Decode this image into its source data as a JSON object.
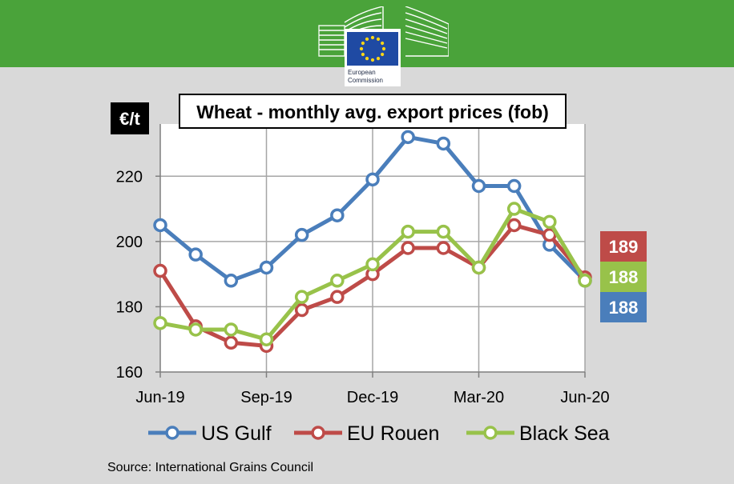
{
  "logo": {
    "line1": "European",
    "line2": "Commission"
  },
  "source": "Source: International Grains Council",
  "chart_data": {
    "type": "line",
    "title": "Wheat - monthly avg. export prices (fob)",
    "ylabel": "€/t",
    "xlabel": "",
    "ylim": [
      160,
      236
    ],
    "yticks": [
      160,
      180,
      200,
      220
    ],
    "x_tick_labels": [
      "Jun-19",
      "Sep-19",
      "Dec-19",
      "Mar-20",
      "Jun-20"
    ],
    "x_tick_positions": [
      0,
      3,
      6,
      9,
      12
    ],
    "categories": [
      "Jun-19",
      "Jul-19",
      "Aug-19",
      "Sep-19",
      "Oct-19",
      "Nov-19",
      "Dec-19",
      "Jan-20",
      "Feb-20",
      "Mar-20",
      "Apr-20",
      "May-20",
      "Jun-20"
    ],
    "grid": true,
    "legend_position": "bottom",
    "series": [
      {
        "name": "US Gulf",
        "color": "#4a7ebb",
        "values": [
          205,
          196,
          188,
          192,
          202,
          208,
          219,
          232,
          230,
          217,
          217,
          199,
          188
        ]
      },
      {
        "name": "EU Rouen",
        "color": "#be4b48",
        "values": [
          191,
          174,
          169,
          168,
          179,
          183,
          190,
          198,
          198,
          192,
          205,
          202,
          189
        ]
      },
      {
        "name": "Black Sea",
        "color": "#98c24a",
        "values": [
          175,
          173,
          173,
          170,
          183,
          188,
          193,
          203,
          203,
          192,
          210,
          206,
          188
        ]
      }
    ],
    "end_labels": [
      {
        "text": "189",
        "color": "#be4b48"
      },
      {
        "text": "188",
        "color": "#98c24a"
      },
      {
        "text": "188",
        "color": "#4a7ebb"
      }
    ]
  }
}
